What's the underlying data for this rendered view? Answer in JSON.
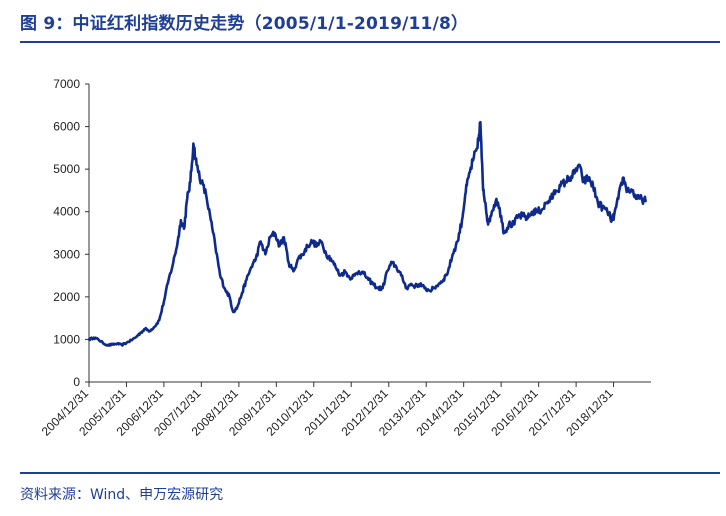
{
  "header": {
    "title": "图 9：中证红利指数历史走势（2005/1/1-2019/11/8）"
  },
  "footer": {
    "source": "资料来源：Wind、申万宏源研究"
  },
  "colors": {
    "accent": "#1f3f97",
    "line": "#0e2a8c",
    "axis": "#333333"
  },
  "chart_data": {
    "type": "line",
    "title": "中证红利指数历史走势（2005/1/1-2019/11/8）",
    "xlabel": "",
    "ylabel": "",
    "ylim": [
      0,
      7000
    ],
    "yticks": [
      0,
      1000,
      2000,
      3000,
      4000,
      5000,
      6000,
      7000
    ],
    "xticks": [
      "2004/12/31",
      "2005/12/31",
      "2006/12/31",
      "2007/12/31",
      "2008/12/31",
      "2009/12/31",
      "2010/12/31",
      "2011/12/31",
      "2012/12/31",
      "2013/12/31",
      "2014/12/31",
      "2015/12/31",
      "2016/12/31",
      "2017/12/31",
      "2018/12/31"
    ],
    "grid": false,
    "legend": "none",
    "series": [
      {
        "x": [
          "2005-01-01",
          "2005-02-15",
          "2005-04-01",
          "2005-05-15",
          "2005-07-01",
          "2005-08-15",
          "2005-10-01",
          "2005-11-15",
          "2006-01-01",
          "2006-02-15",
          "2006-04-01",
          "2006-05-15",
          "2006-07-01",
          "2006-08-15",
          "2006-10-01",
          "2006-11-15",
          "2007-01-01",
          "2007-02-15",
          "2007-04-01",
          "2007-05-15",
          "2007-06-15",
          "2007-07-15",
          "2007-08-15",
          "2007-09-15",
          "2007-10-15",
          "2007-11-15",
          "2008-01-01",
          "2008-02-15",
          "2008-04-01",
          "2008-05-15",
          "2008-07-01",
          "2008-08-15",
          "2008-10-01",
          "2008-11-05",
          "2008-12-15",
          "2009-02-01",
          "2009-03-15",
          "2009-05-01",
          "2009-06-15",
          "2009-08-01",
          "2009-09-15",
          "2009-11-01",
          "2009-12-15",
          "2010-02-01",
          "2010-03-15",
          "2010-05-01",
          "2010-06-15",
          "2010-08-01",
          "2010-09-15",
          "2010-11-01",
          "2010-12-15",
          "2011-02-01",
          "2011-03-15",
          "2011-05-01",
          "2011-06-15",
          "2011-08-01",
          "2011-09-15",
          "2011-11-01",
          "2011-12-15",
          "2012-02-01",
          "2012-03-15",
          "2012-05-01",
          "2012-06-15",
          "2012-08-01",
          "2012-09-15",
          "2012-11-01",
          "2012-12-15",
          "2013-02-01",
          "2013-03-15",
          "2013-05-01",
          "2013-06-25",
          "2013-08-01",
          "2013-09-15",
          "2013-11-01",
          "2013-12-15",
          "2014-02-01",
          "2014-03-15",
          "2014-05-01",
          "2014-06-15",
          "2014-08-01",
          "2014-09-15",
          "2014-11-01",
          "2014-12-15",
          "2015-01-15",
          "2015-02-15",
          "2015-04-01",
          "2015-05-15",
          "2015-06-12",
          "2015-07-08",
          "2015-08-01",
          "2015-08-26",
          "2015-10-01",
          "2015-11-15",
          "2016-01-01",
          "2016-01-28",
          "2016-03-15",
          "2016-05-01",
          "2016-06-15",
          "2016-08-01",
          "2016-09-15",
          "2016-11-01",
          "2016-12-15",
          "2017-02-01",
          "2017-03-15",
          "2017-05-01",
          "2017-06-15",
          "2017-08-01",
          "2017-09-15",
          "2017-11-01",
          "2017-12-15",
          "2018-01-25",
          "2018-03-15",
          "2018-05-01",
          "2018-06-15",
          "2018-08-01",
          "2018-09-15",
          "2018-11-01",
          "2018-12-15",
          "2019-01-04",
          "2019-02-15",
          "2019-04-01",
          "2019-05-15",
          "2019-07-01",
          "2019-08-15",
          "2019-10-01",
          "2019-11-08"
        ],
        "values": [
          1000,
          1040,
          1000,
          920,
          860,
          880,
          900,
          870,
          920,
          980,
          1050,
          1150,
          1250,
          1200,
          1300,
          1450,
          1900,
          2400,
          2800,
          3300,
          3800,
          3600,
          4300,
          4700,
          5600,
          5100,
          4700,
          4400,
          3800,
          3200,
          2500,
          2200,
          2000,
          1650,
          1750,
          2100,
          2400,
          2700,
          2900,
          3300,
          3000,
          3400,
          3500,
          3200,
          3400,
          2800,
          2600,
          2900,
          3000,
          3200,
          3300,
          3200,
          3300,
          3000,
          2900,
          2700,
          2500,
          2600,
          2450,
          2500,
          2600,
          2550,
          2400,
          2300,
          2200,
          2200,
          2600,
          2800,
          2700,
          2500,
          2200,
          2300,
          2250,
          2300,
          2200,
          2150,
          2200,
          2300,
          2400,
          2600,
          3000,
          3300,
          3800,
          4400,
          4800,
          5200,
          5500,
          6100,
          4500,
          4200,
          3700,
          4000,
          4300,
          3900,
          3500,
          3700,
          3700,
          3900,
          3900,
          3850,
          4000,
          4000,
          4050,
          4200,
          4300,
          4500,
          4600,
          4700,
          4800,
          4900,
          5100,
          4700,
          4800,
          4600,
          4200,
          4100,
          4000,
          3800,
          3900,
          4300,
          4800,
          4500,
          4500,
          4300,
          4300,
          4250
        ]
      }
    ]
  }
}
